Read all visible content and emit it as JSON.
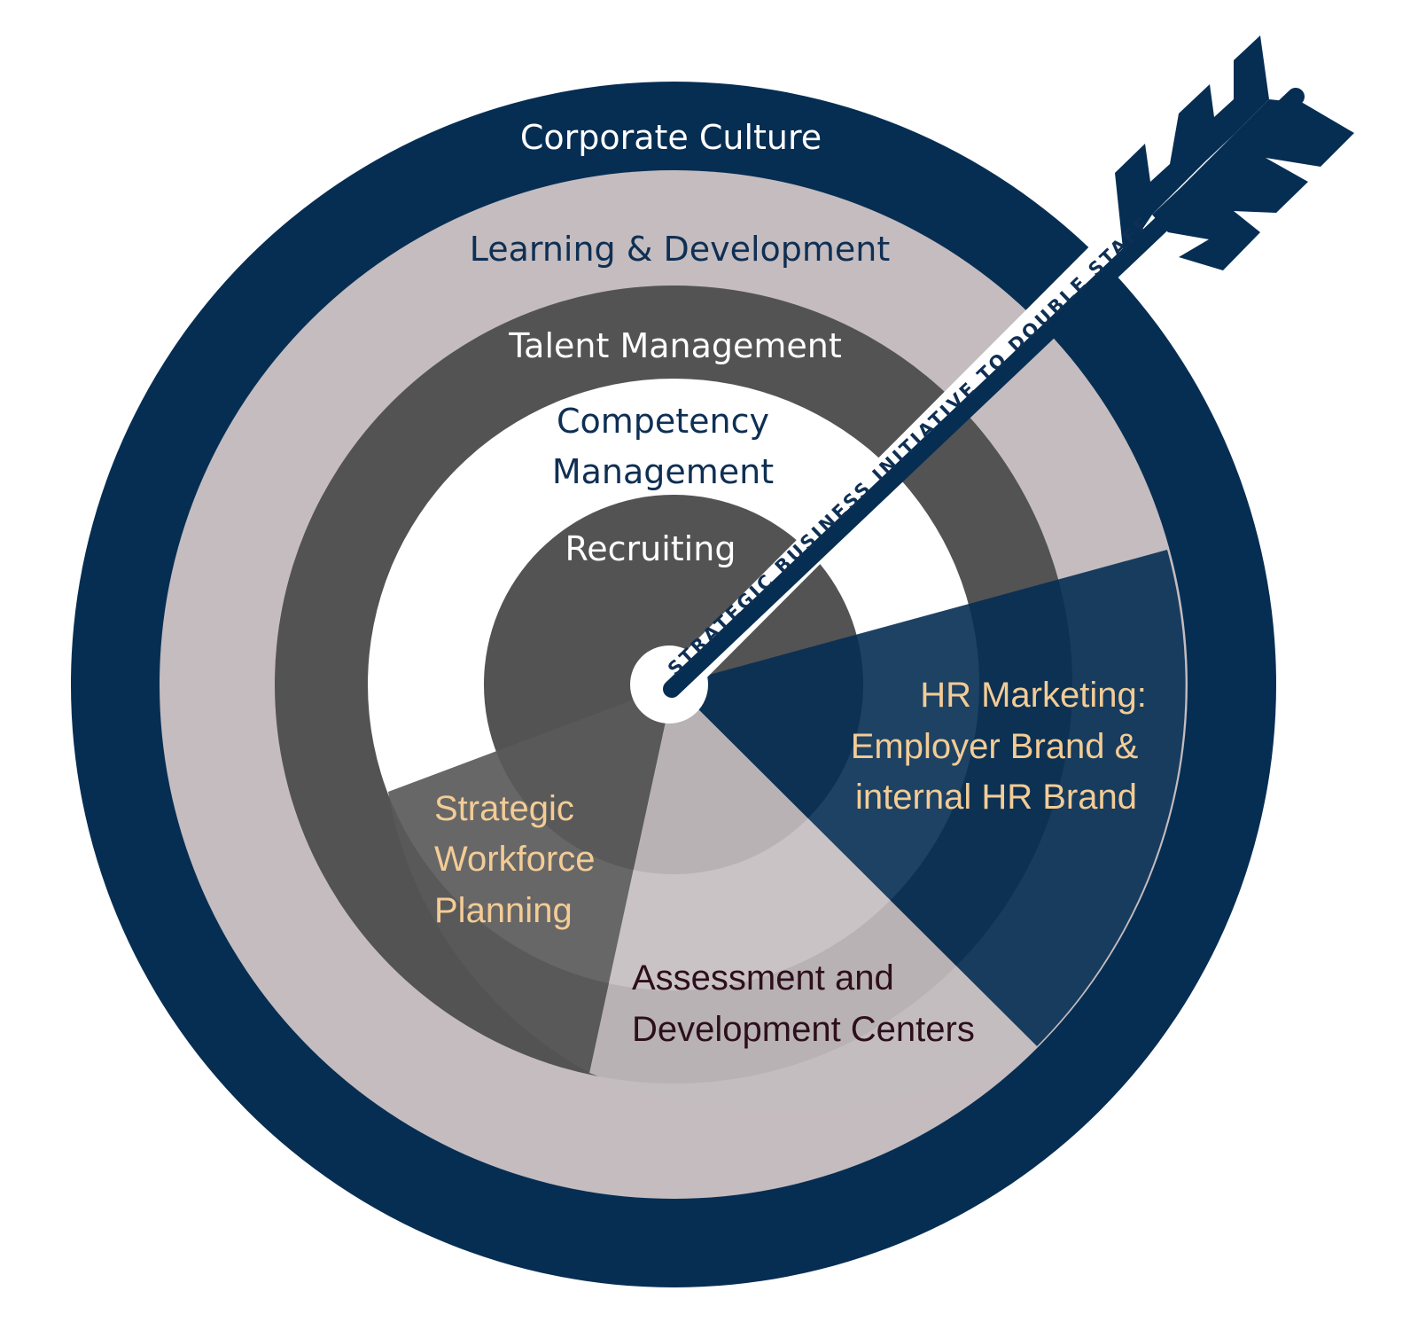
{
  "rings": {
    "corporate_culture": "Corporate Culture",
    "learning_development": "Learning & Development",
    "talent_management": "Talent Management",
    "competency_line1": "Competency",
    "competency_line2": "Management",
    "recruiting": "Recruiting"
  },
  "segments": {
    "hr_marketing": [
      "HR Marketing:",
      "Employer Brand &",
      "internal HR Brand"
    ],
    "strategic_workforce": [
      "Strategic",
      "Workforce",
      "Planning"
    ],
    "assessment": [
      "Assessment and",
      "Development Centers"
    ]
  },
  "arrow": {
    "label": "STRATEGIC BUSINESS INITIATIVE TO DOUBLE STAFF"
  },
  "colors": {
    "navy": "#062e53",
    "light_gray": "#c4bcbf",
    "dark_gray": "#535353",
    "white": "#ffffff",
    "label_white": "#ffffff",
    "label_navy": "#0f2f54",
    "label_gold": "#f3cc95",
    "label_dark": "#2d0f1b"
  }
}
